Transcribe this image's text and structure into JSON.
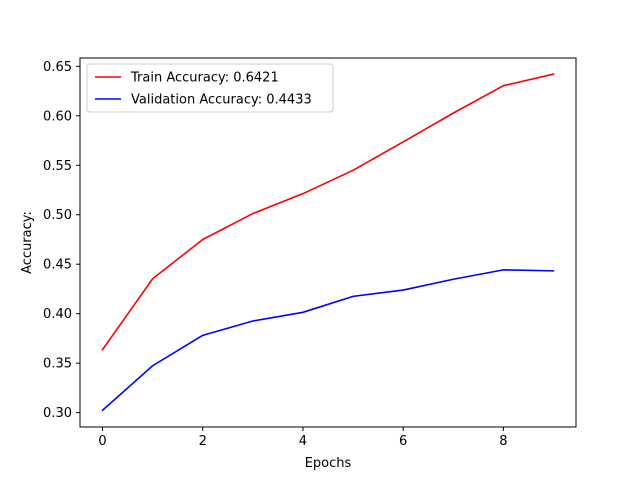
{
  "chart_data": {
    "type": "line",
    "title": "",
    "xlabel": "Epochs",
    "ylabel": "Accuracy:",
    "xlim": [
      -0.45,
      9.45
    ],
    "ylim": [
      0.2855,
      0.6584
    ],
    "x_ticks": [
      0,
      2,
      4,
      6,
      8
    ],
    "x_tick_labels": [
      "0",
      "2",
      "4",
      "6",
      "8"
    ],
    "y_ticks": [
      0.3,
      0.35,
      0.4,
      0.45,
      0.5,
      0.55,
      0.6,
      0.65
    ],
    "y_tick_labels": [
      "0.30",
      "0.35",
      "0.40",
      "0.45",
      "0.50",
      "0.55",
      "0.60",
      "0.65"
    ],
    "grid": false,
    "legend_position": "upper-left",
    "x": [
      0,
      1,
      2,
      3,
      4,
      5,
      6,
      7,
      8,
      9
    ],
    "series": [
      {
        "name": "Train Accuracy: 0.6421",
        "color": "#ff0000",
        "values": [
          0.3637,
          0.4353,
          0.475,
          0.5012,
          0.5213,
          0.5449,
          0.5736,
          0.6027,
          0.6304,
          0.6421
        ]
      },
      {
        "name": "Validation Accuracy: 0.4433",
        "color": "#0000ff",
        "values": [
          0.3024,
          0.3474,
          0.3781,
          0.3926,
          0.4014,
          0.4175,
          0.4239,
          0.4348,
          0.4443,
          0.4433
        ]
      }
    ]
  }
}
